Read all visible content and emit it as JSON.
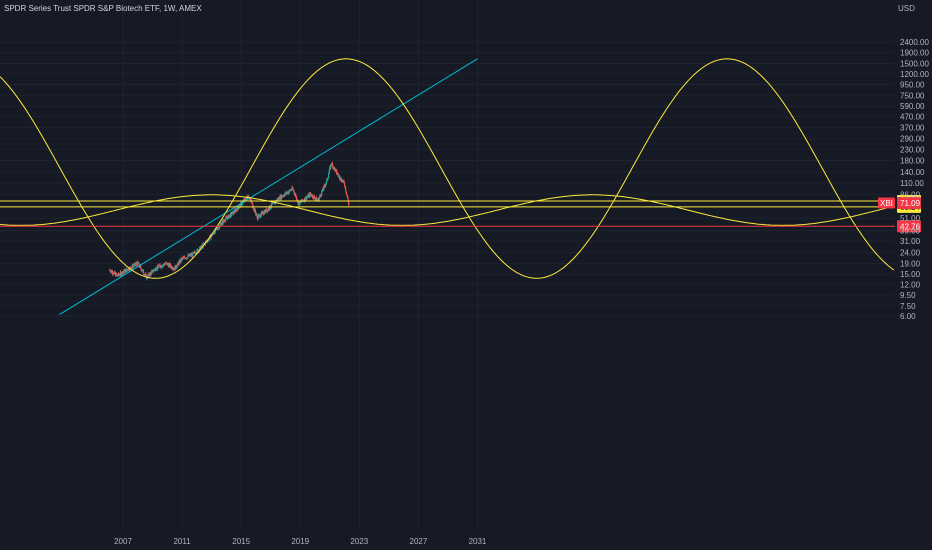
{
  "header": {
    "title": "SPDR Series Trust SPDR S&P Biotech ETF, 1W, AMEX",
    "currency": "USD"
  },
  "symbol_tag": "XBI",
  "chart_data": {
    "type": "candlestick",
    "title": "SPDR Series Trust SPDR S&P Biotech ETF, 1W, AMEX",
    "scale": "log",
    "ylabel": "USD",
    "grid": true,
    "x_ticks": [
      "2007",
      "2011",
      "2015",
      "2019",
      "2023",
      "2027",
      "2031"
    ],
    "y_ticks": [
      2400,
      1900,
      1500,
      1200,
      950,
      750,
      590,
      470,
      370,
      290,
      230,
      180,
      140,
      110,
      86,
      51,
      39,
      31,
      24,
      19,
      15,
      12,
      9.5,
      7.5,
      6
    ],
    "y_tick_labels": [
      "2400.00",
      "1900.00",
      "1500.00",
      "1200.00",
      "950.00",
      "750.00",
      "590.00",
      "470.00",
      "370.00",
      "290.00",
      "230.00",
      "180.00",
      "140.00",
      "110.00",
      "86.00",
      "51.00",
      "39.00",
      "31.00",
      "24.00",
      "19.00",
      "15.00",
      "12.00",
      "9.50",
      "7.50",
      "6.00"
    ],
    "price_path": [
      {
        "year": 2006.1,
        "price": 16.5
      },
      {
        "year": 2006.6,
        "price": 14.5
      },
      {
        "year": 2007.4,
        "price": 17
      },
      {
        "year": 2008.0,
        "price": 19
      },
      {
        "year": 2008.6,
        "price": 14
      },
      {
        "year": 2009.2,
        "price": 17
      },
      {
        "year": 2009.9,
        "price": 19
      },
      {
        "year": 2010.5,
        "price": 17
      },
      {
        "year": 2011.0,
        "price": 21
      },
      {
        "year": 2011.7,
        "price": 23
      },
      {
        "year": 2012.3,
        "price": 27
      },
      {
        "year": 2013.0,
        "price": 35
      },
      {
        "year": 2013.8,
        "price": 48
      },
      {
        "year": 2014.6,
        "price": 60
      },
      {
        "year": 2015.5,
        "price": 84
      },
      {
        "year": 2016.1,
        "price": 52
      },
      {
        "year": 2016.8,
        "price": 62
      },
      {
        "year": 2017.6,
        "price": 80
      },
      {
        "year": 2018.5,
        "price": 97
      },
      {
        "year": 2018.9,
        "price": 70
      },
      {
        "year": 2019.7,
        "price": 86
      },
      {
        "year": 2020.2,
        "price": 75
      },
      {
        "year": 2020.8,
        "price": 115
      },
      {
        "year": 2021.1,
        "price": 170
      },
      {
        "year": 2021.5,
        "price": 135
      },
      {
        "year": 2022.0,
        "price": 108
      },
      {
        "year": 2022.3,
        "price": 68
      }
    ],
    "current_price": 71.09,
    "horizontal_levels": [
      {
        "price": 74.33,
        "label": "74.33",
        "color": "#ffeb3b"
      },
      {
        "price": 65.24,
        "label": "65.24",
        "color": "#ffeb3b"
      },
      {
        "price": 42.76,
        "label": "42.76",
        "color": "#f23645"
      }
    ],
    "trendline": {
      "color": "#00bcd4",
      "from": {
        "year": 2002.7,
        "price": 6.2
      },
      "to": {
        "year": 2031.0,
        "price": 1664
      }
    },
    "sine_large": {
      "color": "#ffeb3b",
      "period_years": 25.8,
      "trough": {
        "year": 2009.2,
        "price": 13.7
      },
      "peak": {
        "year": 2022.1,
        "price": 1664
      }
    },
    "sine_small": {
      "color": "#ffeb3b",
      "period_years": 25.8,
      "peak": {
        "year": 2013.0,
        "price": 85
      },
      "trough": {
        "year": 2025.9,
        "price": 43.6
      }
    }
  },
  "colors": {
    "bull": "#26a69a",
    "bear": "#ef5350",
    "grid": "#1f2330",
    "background": "#161a25"
  }
}
